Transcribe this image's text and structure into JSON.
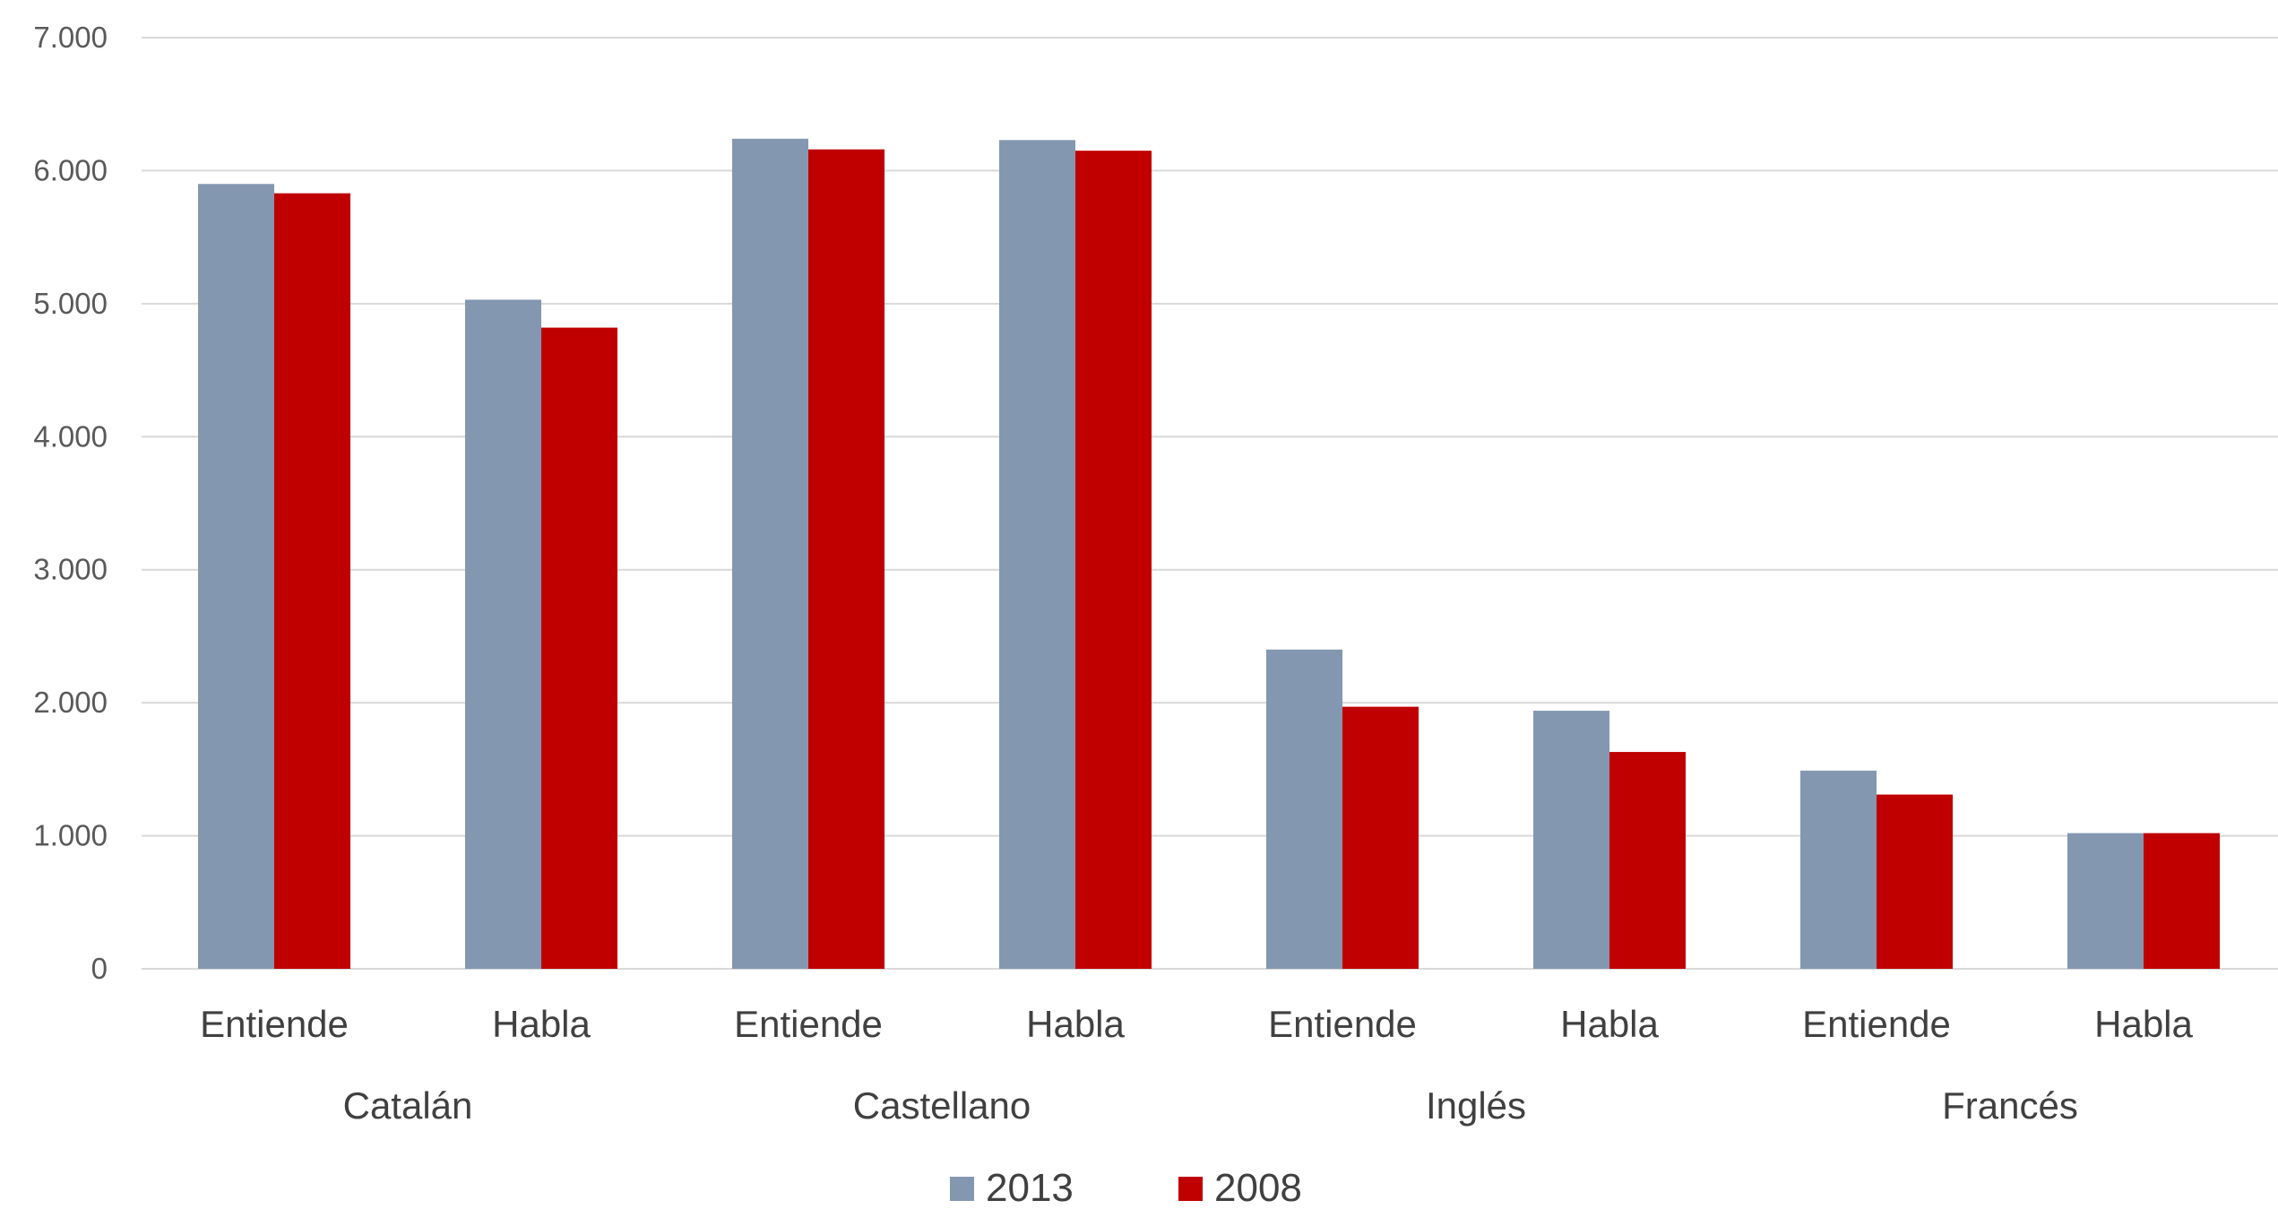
{
  "chart_data": {
    "type": "bar",
    "title": "",
    "xlabel": "",
    "ylabel": "",
    "ylim": [
      0,
      7000
    ],
    "yticks": [
      0,
      1000,
      2000,
      3000,
      4000,
      5000,
      6000,
      7000
    ],
    "ytick_labels": [
      "0",
      "1.000",
      "2.000",
      "3.000",
      "4.000",
      "5.000",
      "6.000",
      "7.000"
    ],
    "grid": true,
    "legend_position": "bottom",
    "groups": [
      {
        "label": "Catalán",
        "categories": [
          "Entiende",
          "Habla"
        ]
      },
      {
        "label": "Castellano",
        "categories": [
          "Entiende",
          "Habla"
        ]
      },
      {
        "label": "Inglés",
        "categories": [
          "Entiende",
          "Habla"
        ]
      },
      {
        "label": "Francés",
        "categories": [
          "Entiende",
          "Habla"
        ]
      }
    ],
    "categories": [
      "Entiende",
      "Habla",
      "Entiende",
      "Habla",
      "Entiende",
      "Habla",
      "Entiende",
      "Habla"
    ],
    "series": [
      {
        "name": "2013",
        "color": "#8497B0",
        "values": [
          5900,
          5030,
          6240,
          6230,
          2400,
          1940,
          1490,
          1020
        ]
      },
      {
        "name": "2008",
        "color": "#C00000",
        "values": [
          5830,
          4820,
          6160,
          6150,
          1970,
          1630,
          1310,
          1020
        ]
      }
    ]
  }
}
